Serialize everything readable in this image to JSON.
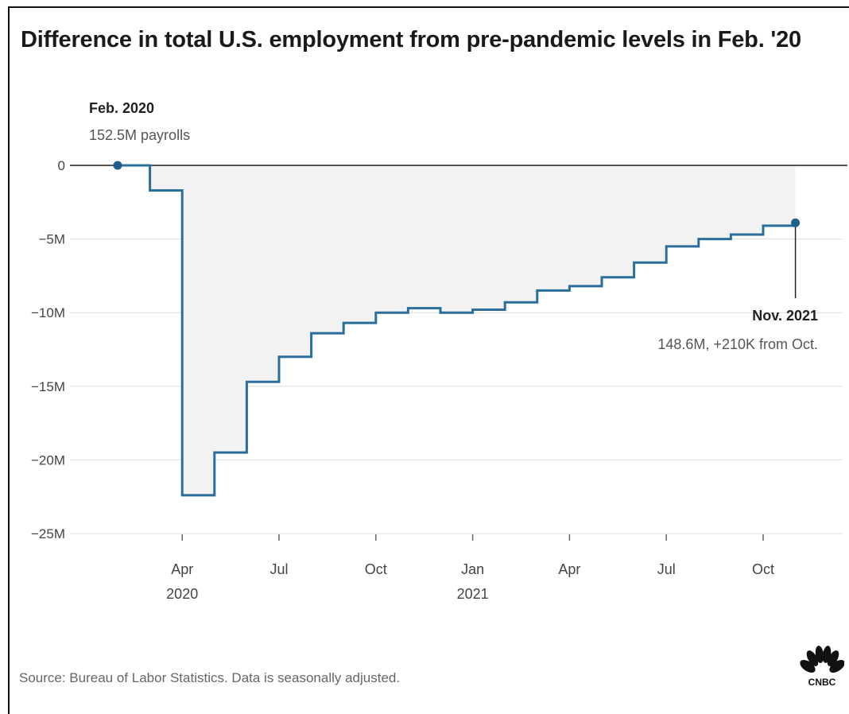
{
  "title": "Difference in total U.S. employment from pre-pandemic levels in Feb. '20",
  "source": "Source: Bureau of Labor Statistics. Data is seasonally adjusted.",
  "logo_text": "CNBC",
  "colors": {
    "line": "#2a6e9c",
    "fill": "#f2f2f2",
    "grid": "#dcdcdc",
    "zero": "#555555",
    "marker": "#1f5f8b"
  },
  "chart_data": {
    "type": "line",
    "step": true,
    "x_unit": "month",
    "y_unit": "millions of jobs",
    "ylim": [
      -25,
      0
    ],
    "y_ticks": [
      0,
      -5,
      -10,
      -15,
      -20,
      -25
    ],
    "y_tick_labels": [
      "0",
      "−5M",
      "−10M",
      "−15M",
      "−20M",
      "−25M"
    ],
    "x_ticks": [
      {
        "month": "2020-04",
        "label": "Apr",
        "year": "2020"
      },
      {
        "month": "2020-07",
        "label": "Jul",
        "year": ""
      },
      {
        "month": "2020-10",
        "label": "Oct",
        "year": ""
      },
      {
        "month": "2021-01",
        "label": "Jan",
        "year": "2021"
      },
      {
        "month": "2021-04",
        "label": "Apr",
        "year": ""
      },
      {
        "month": "2021-07",
        "label": "Jul",
        "year": ""
      },
      {
        "month": "2021-10",
        "label": "Oct",
        "year": ""
      }
    ],
    "x_range": [
      "2020-01",
      "2021-12"
    ],
    "grid": true,
    "series": [
      {
        "x": [
          "2020-02",
          "2020-03",
          "2020-04",
          "2020-05",
          "2020-06",
          "2020-07",
          "2020-08",
          "2020-09",
          "2020-10",
          "2020-11",
          "2020-12",
          "2021-01",
          "2021-02",
          "2021-03",
          "2021-04",
          "2021-05",
          "2021-06",
          "2021-07",
          "2021-08",
          "2021-09",
          "2021-10",
          "2021-11"
        ],
        "values": [
          0,
          -1.7,
          -22.4,
          -19.5,
          -14.7,
          -13.0,
          -11.4,
          -10.7,
          -10.0,
          -9.7,
          -10.0,
          -9.8,
          -9.3,
          -8.5,
          -8.2,
          -7.6,
          -6.6,
          -5.5,
          -5.0,
          -4.7,
          -4.1,
          -3.9
        ]
      }
    ],
    "annotations": [
      {
        "month": "2020-02",
        "value": 0,
        "label": "Feb. 2020",
        "sublabel": "152.5M payrolls"
      },
      {
        "month": "2021-11",
        "value": -3.9,
        "label": "Nov. 2021",
        "sublabel": "148.6M, +210K from Oct."
      }
    ]
  }
}
